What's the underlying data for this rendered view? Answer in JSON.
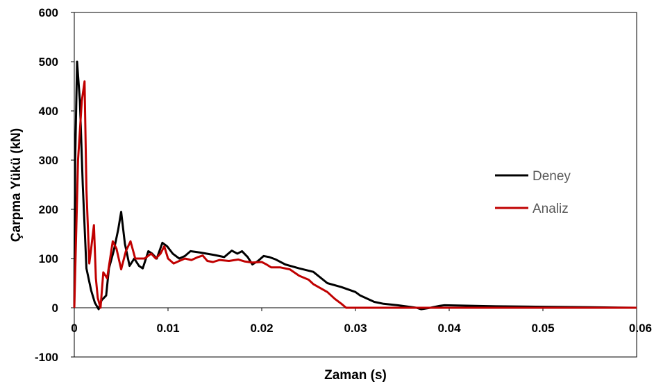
{
  "chart_data": {
    "type": "line",
    "xlabel": "Zaman (s)",
    "ylabel": "Çarpma Yükü (kN)",
    "xlim": [
      0,
      0.06
    ],
    "ylim": [
      -100,
      600
    ],
    "x_ticks": [
      0,
      0.01,
      0.02,
      0.03,
      0.04,
      0.05,
      0.06
    ],
    "x_tick_labels": [
      "0",
      "0.01",
      "0.02",
      "0.03",
      "0.04",
      "0.05",
      "0.06"
    ],
    "y_ticks": [
      -100,
      0,
      100,
      200,
      300,
      400,
      500,
      600
    ],
    "y_tick_labels": [
      "-100",
      "0",
      "100",
      "200",
      "300",
      "400",
      "500",
      "600"
    ],
    "grid": false,
    "legend_position": "right-middle",
    "series": [
      {
        "name": "Deney",
        "color": "#000000",
        "points": [
          [
            0,
            0
          ],
          [
            0.0001,
            300
          ],
          [
            0.0003,
            500
          ],
          [
            0.0006,
            420
          ],
          [
            0.0009,
            250
          ],
          [
            0.0013,
            80
          ],
          [
            0.0018,
            35
          ],
          [
            0.0022,
            10
          ],
          [
            0.0026,
            -3
          ],
          [
            0.0029,
            15
          ],
          [
            0.0034,
            25
          ],
          [
            0.0037,
            80
          ],
          [
            0.0042,
            115
          ],
          [
            0.0047,
            160
          ],
          [
            0.005,
            195
          ],
          [
            0.0054,
            130
          ],
          [
            0.0059,
            85
          ],
          [
            0.0064,
            100
          ],
          [
            0.0069,
            85
          ],
          [
            0.0073,
            80
          ],
          [
            0.0079,
            115
          ],
          [
            0.0083,
            110
          ],
          [
            0.0088,
            100
          ],
          [
            0.0094,
            132
          ],
          [
            0.0099,
            125
          ],
          [
            0.0105,
            110
          ],
          [
            0.0112,
            100
          ],
          [
            0.0118,
            105
          ],
          [
            0.0124,
            115
          ],
          [
            0.0135,
            112
          ],
          [
            0.015,
            107
          ],
          [
            0.016,
            103
          ],
          [
            0.0168,
            116
          ],
          [
            0.0174,
            110
          ],
          [
            0.0179,
            115
          ],
          [
            0.0185,
            103
          ],
          [
            0.019,
            88
          ],
          [
            0.0196,
            95
          ],
          [
            0.0202,
            105
          ],
          [
            0.0208,
            103
          ],
          [
            0.0215,
            98
          ],
          [
            0.0225,
            88
          ],
          [
            0.024,
            80
          ],
          [
            0.0255,
            73
          ],
          [
            0.027,
            50
          ],
          [
            0.0285,
            42
          ],
          [
            0.03,
            32
          ],
          [
            0.0305,
            25
          ],
          [
            0.032,
            12
          ],
          [
            0.033,
            8
          ],
          [
            0.0345,
            5
          ],
          [
            0.0365,
            0
          ],
          [
            0.037,
            -3
          ],
          [
            0.038,
            0
          ],
          [
            0.039,
            4
          ],
          [
            0.0395,
            5
          ],
          [
            0.045,
            3
          ],
          [
            0.05,
            2
          ],
          [
            0.055,
            1
          ],
          [
            0.06,
            0
          ]
        ]
      },
      {
        "name": "Analiz",
        "color": "#C00000",
        "points": [
          [
            0,
            0
          ],
          [
            0.0004,
            300
          ],
          [
            0.0008,
            420
          ],
          [
            0.0011,
            460
          ],
          [
            0.0013,
            240
          ],
          [
            0.0016,
            90
          ],
          [
            0.0018,
            120
          ],
          [
            0.0021,
            168
          ],
          [
            0.0023,
            60
          ],
          [
            0.0025,
            20
          ],
          [
            0.0028,
            0
          ],
          [
            0.0031,
            72
          ],
          [
            0.0035,
            60
          ],
          [
            0.0041,
            135
          ],
          [
            0.0045,
            120
          ],
          [
            0.005,
            78
          ],
          [
            0.0055,
            115
          ],
          [
            0.006,
            135
          ],
          [
            0.0065,
            100
          ],
          [
            0.0075,
            100
          ],
          [
            0.0082,
            110
          ],
          [
            0.0087,
            100
          ],
          [
            0.0092,
            110
          ],
          [
            0.0096,
            125
          ],
          [
            0.01,
            100
          ],
          [
            0.0106,
            90
          ],
          [
            0.0112,
            95
          ],
          [
            0.0118,
            100
          ],
          [
            0.0125,
            97
          ],
          [
            0.0132,
            103
          ],
          [
            0.0137,
            106
          ],
          [
            0.0142,
            95
          ],
          [
            0.0148,
            93
          ],
          [
            0.0155,
            97
          ],
          [
            0.0165,
            95
          ],
          [
            0.0175,
            98
          ],
          [
            0.0182,
            94
          ],
          [
            0.019,
            92
          ],
          [
            0.02,
            93
          ],
          [
            0.0205,
            88
          ],
          [
            0.021,
            82
          ],
          [
            0.022,
            82
          ],
          [
            0.023,
            78
          ],
          [
            0.024,
            65
          ],
          [
            0.025,
            57
          ],
          [
            0.0255,
            48
          ],
          [
            0.027,
            32
          ],
          [
            0.0278,
            18
          ],
          [
            0.0285,
            8
          ],
          [
            0.029,
            0
          ],
          [
            0.035,
            0
          ],
          [
            0.045,
            0
          ],
          [
            0.055,
            0
          ],
          [
            0.06,
            0
          ]
        ]
      }
    ]
  },
  "colors": {
    "axis": "#000000",
    "legend_text": "#595959"
  }
}
